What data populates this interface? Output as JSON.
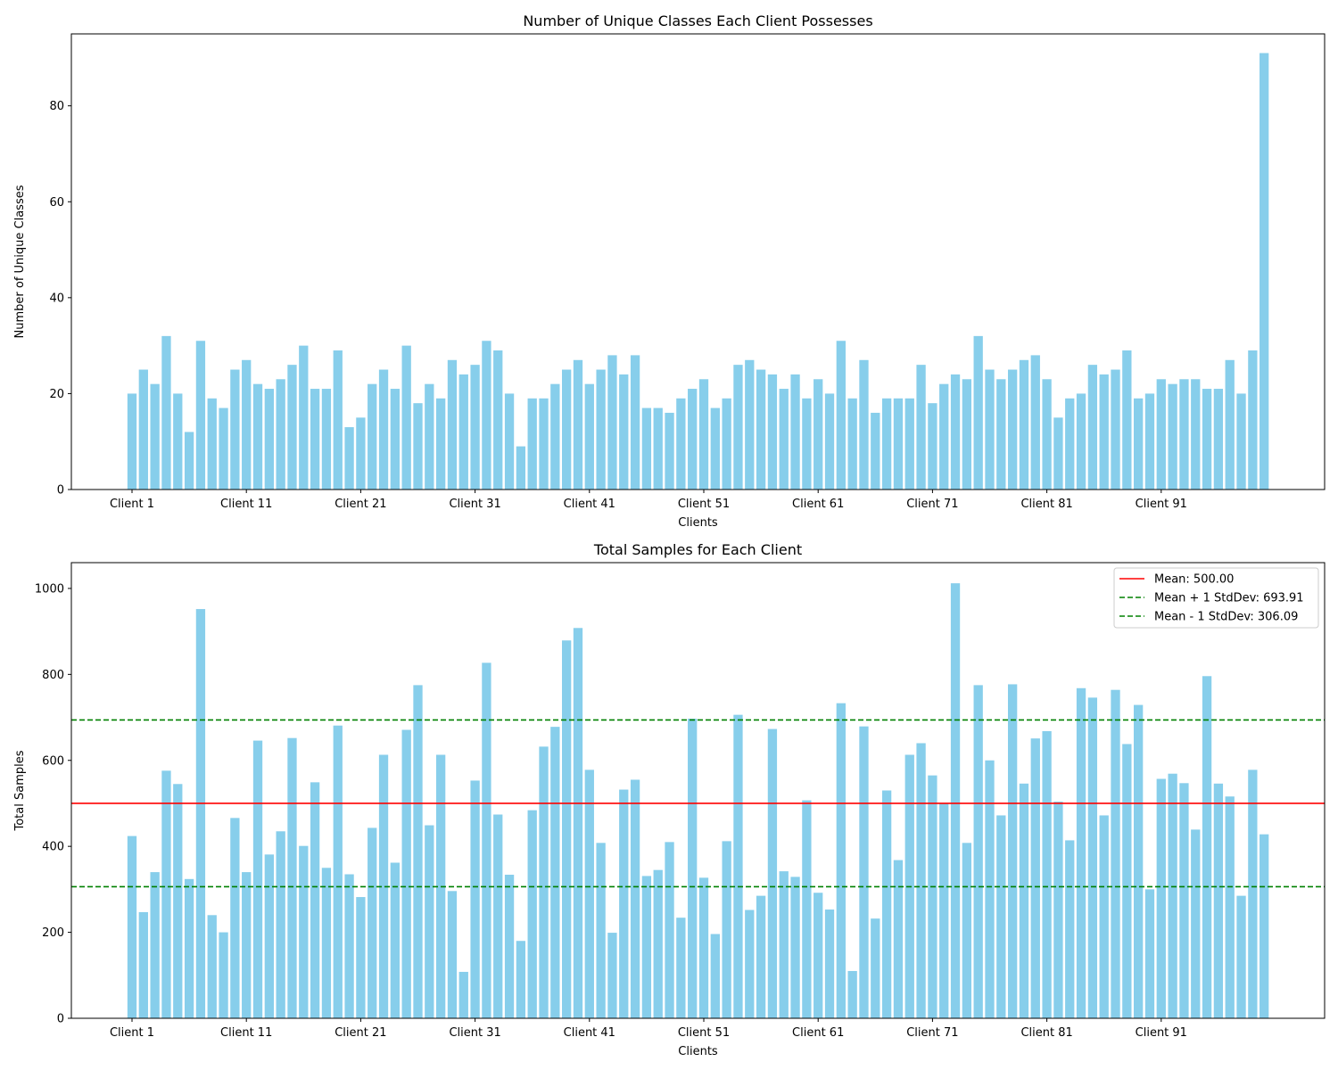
{
  "chart_data": [
    {
      "type": "bar",
      "title": "Number of Unique Classes Each Client Possesses",
      "xlabel": "Clients",
      "ylabel": "Number of Unique Classes",
      "ylim": [
        0,
        95
      ],
      "yticks": [
        0,
        20,
        40,
        60,
        80
      ],
      "xtick_labels": [
        "Client 1",
        "Client 11",
        "Client 21",
        "Client 31",
        "Client 41",
        "Client 51",
        "Client 61",
        "Client 71",
        "Client 81",
        "Client 91"
      ],
      "bar_color": "#87ceeb",
      "values": [
        20,
        25,
        22,
        32,
        20,
        12,
        31,
        19,
        17,
        25,
        27,
        22,
        21,
        23,
        26,
        30,
        21,
        21,
        29,
        13,
        15,
        22,
        25,
        21,
        30,
        18,
        22,
        19,
        27,
        24,
        26,
        31,
        29,
        20,
        9,
        19,
        19,
        22,
        25,
        27,
        22,
        25,
        28,
        24,
        28,
        17,
        17,
        16,
        19,
        21,
        23,
        17,
        19,
        26,
        27,
        25,
        24,
        21,
        24,
        19,
        23,
        20,
        31,
        19,
        27,
        16,
        19,
        19,
        19,
        26,
        18,
        22,
        24,
        23,
        32,
        25,
        23,
        25,
        27,
        28,
        23,
        15,
        19,
        20,
        26,
        24,
        25,
        29,
        19,
        20,
        23,
        22,
        23,
        23,
        21,
        21,
        27,
        20,
        29,
        91
      ]
    },
    {
      "type": "bar",
      "title": "Total Samples for Each Client",
      "xlabel": "Clients",
      "ylabel": "Total Samples",
      "ylim": [
        0,
        1060
      ],
      "yticks": [
        0,
        200,
        400,
        600,
        800,
        1000
      ],
      "xtick_labels": [
        "Client 1",
        "Client 11",
        "Client 21",
        "Client 31",
        "Client 41",
        "Client 51",
        "Client 61",
        "Client 71",
        "Client 81",
        "Client 91"
      ],
      "bar_color": "#87ceeb",
      "values": [
        424,
        247,
        340,
        576,
        545,
        324,
        952,
        240,
        200,
        466,
        340,
        646,
        381,
        435,
        652,
        401,
        549,
        350,
        681,
        335,
        282,
        443,
        613,
        362,
        671,
        775,
        449,
        613,
        296,
        108,
        553,
        827,
        474,
        334,
        180,
        484,
        632,
        678,
        879,
        908,
        578,
        408,
        199,
        532,
        555,
        331,
        345,
        410,
        234,
        697,
        327,
        196,
        412,
        706,
        252,
        285,
        673,
        342,
        329,
        507,
        292,
        253,
        733,
        110,
        679,
        232,
        530,
        368,
        613,
        640,
        565,
        500,
        1012,
        408,
        775,
        600,
        472,
        777,
        546,
        651,
        668,
        504,
        414,
        768,
        746,
        472,
        764,
        638,
        729,
        300,
        557,
        569,
        547,
        439,
        796,
        546,
        516,
        285,
        578,
        428
      ],
      "lines": [
        {
          "label": "Mean: 500.00",
          "value": 500.0,
          "color": "#ff0000",
          "style": "solid"
        },
        {
          "label": "Mean + 1 StdDev: 693.91",
          "value": 693.91,
          "color": "#008000",
          "style": "dashed"
        },
        {
          "label": "Mean - 1 StdDev: 306.09",
          "value": 306.09,
          "color": "#008000",
          "style": "dashed"
        }
      ],
      "legend": "top-right"
    }
  ]
}
